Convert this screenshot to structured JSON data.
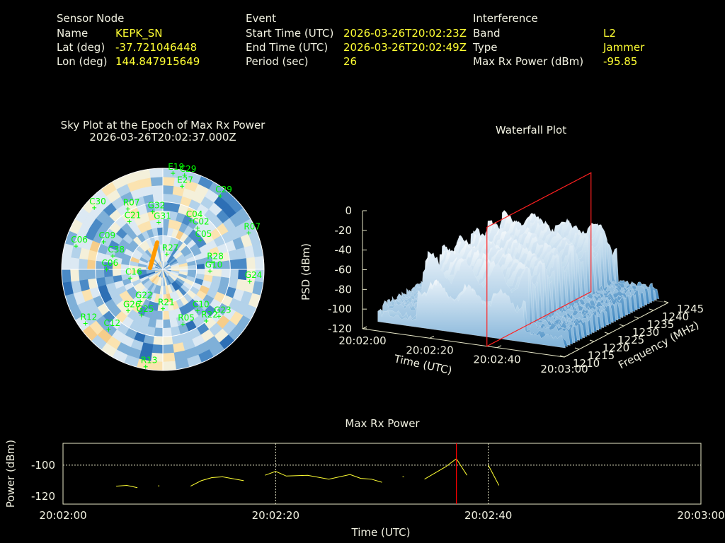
{
  "header": {
    "sensor": {
      "heading": "Sensor Node",
      "rows": [
        {
          "label": "Name",
          "value": "KEPK_SN"
        },
        {
          "label": "Lat (deg)",
          "value": "-37.721046448"
        },
        {
          "label": "Lon (deg)",
          "value": "144.847915649"
        }
      ]
    },
    "event": {
      "heading": "Event",
      "rows": [
        {
          "label": "Start Time (UTC)",
          "value": "2026-03-26T20:02:23Z"
        },
        {
          "label": "End Time (UTC)",
          "value": "2026-03-26T20:02:49Z"
        },
        {
          "label": "Period (sec)",
          "value": "26"
        }
      ]
    },
    "interference": {
      "heading": "Interference",
      "rows": [
        {
          "label": "Band",
          "value": "L2"
        },
        {
          "label": "Type",
          "value": "Jammer"
        },
        {
          "label": "Max Rx Power (dBm)",
          "value": "-95.85"
        }
      ]
    }
  },
  "colors": {
    "background": "#000000",
    "satellite": "#00ff00",
    "value_text": "#ffff33",
    "line": "#ffff33",
    "marker": "#ff0000"
  },
  "chart_data": [
    {
      "type": "polar-skyplot",
      "title": "Sky Plot at the Epoch of Max Rx Power",
      "subtitle": "2026-03-26T20:02:37.000Z",
      "satellites": [
        {
          "name": "E19",
          "az": 6,
          "el": 4
        },
        {
          "name": "C29",
          "az": 13,
          "el": 4
        },
        {
          "name": "E27",
          "az": 13,
          "el": 14
        },
        {
          "name": "C29",
          "az": 38,
          "el": 7
        },
        {
          "name": "R07",
          "az": 67,
          "el": 7
        },
        {
          "name": "C04",
          "az": 30,
          "el": 40
        },
        {
          "name": "C02",
          "az": 40,
          "el": 42
        },
        {
          "name": "C05",
          "az": 52,
          "el": 48
        },
        {
          "name": "R28",
          "az": 82,
          "el": 46
        },
        {
          "name": "G10",
          "az": 92,
          "el": 48
        },
        {
          "name": "G24",
          "az": 98,
          "el": 12
        },
        {
          "name": "R27",
          "az": 15,
          "el": 76
        },
        {
          "name": "G32",
          "az": 350,
          "el": 38
        },
        {
          "name": "R07",
          "az": 330,
          "el": 28
        },
        {
          "name": "G31",
          "az": 355,
          "el": 48
        },
        {
          "name": "C21",
          "az": 325,
          "el": 38
        },
        {
          "name": "C30",
          "az": 312,
          "el": 8
        },
        {
          "name": "C09",
          "az": 295,
          "el": 32
        },
        {
          "name": "C06",
          "az": 285,
          "el": 10
        },
        {
          "name": "C38",
          "az": 285,
          "el": 44
        },
        {
          "name": "C06",
          "az": 270,
          "el": 40
        },
        {
          "name": "C16",
          "az": 255,
          "el": 60
        },
        {
          "name": "G26",
          "az": 220,
          "el": 42
        },
        {
          "name": "G22",
          "az": 215,
          "el": 55
        },
        {
          "name": "G25",
          "az": 205,
          "el": 45
        },
        {
          "name": "R21",
          "az": 180,
          "el": 55
        },
        {
          "name": "C10",
          "az": 140,
          "el": 42
        },
        {
          "name": "R05",
          "az": 160,
          "el": 38
        },
        {
          "name": "R22",
          "az": 140,
          "el": 30
        },
        {
          "name": "G23",
          "az": 130,
          "el": 25
        },
        {
          "name": "C12",
          "az": 222,
          "el": 18
        },
        {
          "name": "R12",
          "az": 235,
          "el": 6
        },
        {
          "name": "R13",
          "az": 190,
          "el": 2
        }
      ]
    },
    {
      "type": "waterfall-3d",
      "title": "Waterfall Plot",
      "zlabel": "PSD (dBm)",
      "xlabel": "Time (UTC)",
      "ylabel": "Frequency (MHz)",
      "z_ticks": [
        "0",
        "-20",
        "-40",
        "-60",
        "-80",
        "-100",
        "-120"
      ],
      "x_ticks": [
        "20:02:00",
        "20:02:20",
        "20:02:40",
        "20:03:00"
      ],
      "y_ticks": [
        "1210",
        "1215",
        "1220",
        "1225",
        "1230",
        "1235",
        "1240",
        "1245"
      ],
      "zlim": [
        -120,
        0
      ],
      "xlim": [
        "20:02:00",
        "20:03:00"
      ],
      "ylim": [
        1210,
        1245
      ],
      "max_power_epoch": "20:02:37"
    },
    {
      "type": "line",
      "title": "Max Rx Power",
      "xlabel": "Time (UTC)",
      "ylabel": "Power (dBm)",
      "x_ticks": [
        "20:02:00",
        "20:02:20",
        "20:02:40",
        "20:03:00"
      ],
      "y_ticks": [
        "-100",
        "-120"
      ],
      "xlim": [
        0,
        60
      ],
      "ylim": [
        -125,
        -86
      ],
      "grid": true,
      "marker_x": 37,
      "segments": [
        [
          [
            5,
            -113.5
          ],
          [
            6,
            -113
          ],
          [
            7,
            -114.5
          ]
        ],
        [
          [
            9,
            -113.3
          ]
        ],
        [
          [
            12,
            -113.5
          ],
          [
            13,
            -110
          ],
          [
            14,
            -108
          ],
          [
            15,
            -107.5
          ],
          [
            17,
            -110
          ]
        ],
        [
          [
            19,
            -106.5
          ],
          [
            20,
            -104
          ],
          [
            21,
            -107
          ],
          [
            23,
            -106.5
          ],
          [
            25,
            -109
          ],
          [
            27,
            -106
          ],
          [
            28,
            -108.5
          ],
          [
            29,
            -109
          ],
          [
            30,
            -111
          ]
        ],
        [
          [
            32,
            -107.5
          ]
        ],
        [
          [
            34,
            -109
          ],
          [
            36,
            -101
          ],
          [
            37,
            -95.9
          ],
          [
            38,
            -106.5
          ]
        ],
        [
          [
            40,
            -100
          ],
          [
            41,
            -113
          ]
        ]
      ]
    }
  ]
}
